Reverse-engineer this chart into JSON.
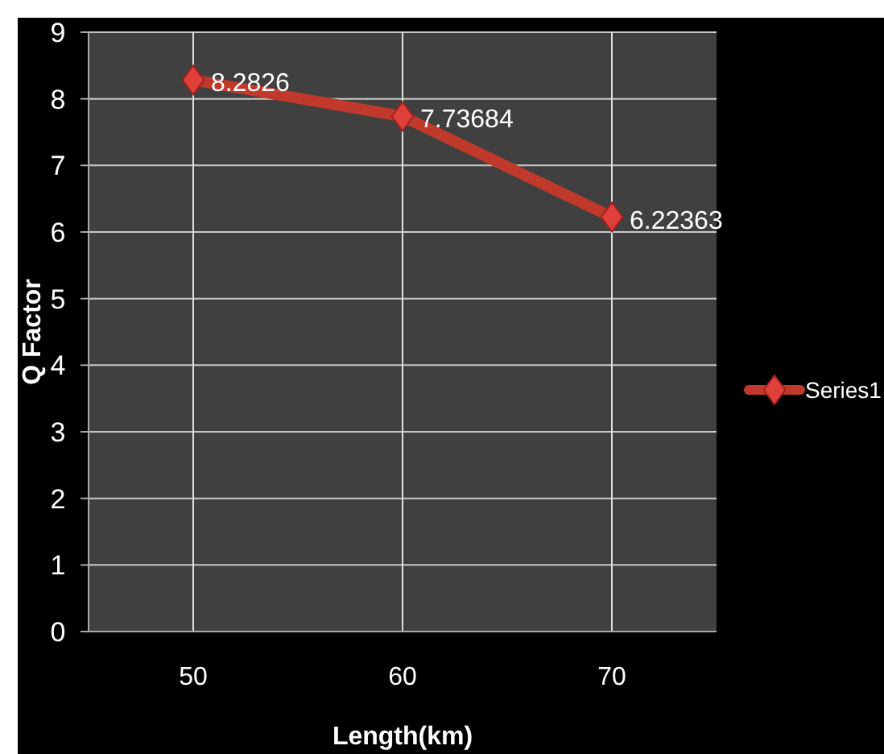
{
  "chart_data": {
    "type": "line",
    "categories": [
      "50",
      "60",
      "70"
    ],
    "series": [
      {
        "name": "Series1",
        "color": "#c0392b",
        "values": [
          8.2826,
          7.73684,
          6.22363
        ]
      }
    ],
    "xlabel": "Length(km)",
    "ylabel": "Q Factor",
    "ylim": [
      0,
      9
    ],
    "yticks": [
      0,
      1,
      2,
      3,
      4,
      5,
      6,
      7,
      8,
      9
    ],
    "grid": true,
    "legend": "right",
    "marker": "diamond",
    "data_labels": true
  }
}
